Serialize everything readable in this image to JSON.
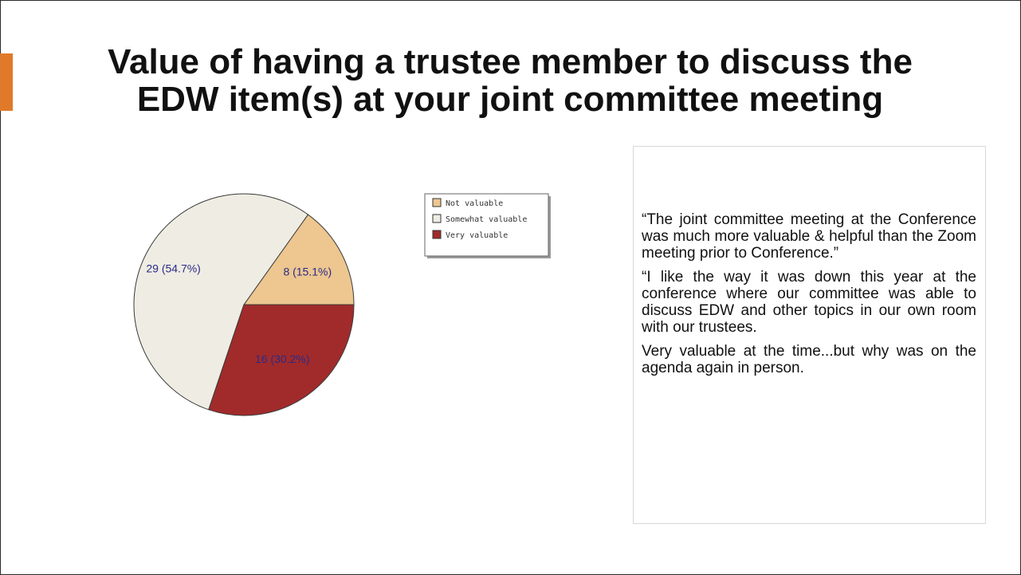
{
  "slide": {
    "title_line1": "Value of having a trustee member to discuss the",
    "title_line2": "EDW item(s) at your joint committee meeting"
  },
  "colors": {
    "accent": "#e07a2a",
    "not_valuable": "#edc690",
    "somewhat_valuable": "#efede3",
    "very_valuable": "#a12b2b",
    "pie_label": "#2a2a86"
  },
  "chart_data": {
    "type": "pie",
    "title": "",
    "categories": [
      "Not valuable",
      "Somewhat valuable",
      "Very valuable"
    ],
    "values": [
      8,
      29,
      16
    ],
    "percentages": [
      15.1,
      54.7,
      30.2
    ],
    "labels": [
      "8 (15.1%)",
      "29 (54.7%)",
      "16 (30.2%)"
    ],
    "legend_position": "right"
  },
  "quotes": [
    "“The joint committee meeting at the Conference was much more valuable & helpful than the Zoom meeting prior to Conference.”",
    "“I like the way it was down this year at the conference where our committee was able to discuss EDW and other topics in our own room with our trustees.",
    "Very valuable at the time...but why was on the agenda again in person."
  ]
}
